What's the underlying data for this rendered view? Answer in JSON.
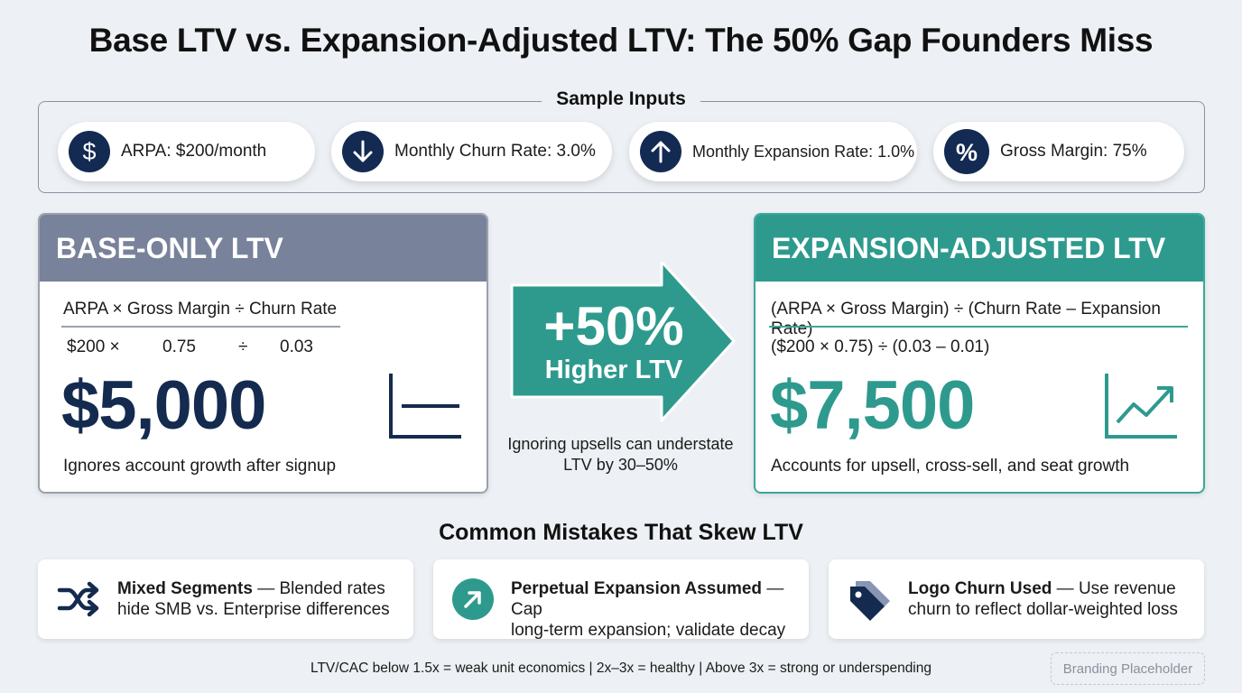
{
  "title": "Base LTV vs. Expansion-Adjusted LTV: The 50% Gap Founders Miss",
  "sample_inputs": {
    "label": "Sample Inputs",
    "items": [
      {
        "icon": "dollar-icon",
        "text": "ARPA: $200/month"
      },
      {
        "icon": "arrow-down-icon",
        "text": "Monthly Churn Rate: 3.0%"
      },
      {
        "icon": "arrow-up-icon",
        "text": "Monthly Expansion Rate: 1.0%"
      },
      {
        "icon": "percent-icon",
        "text": "Gross Margin: 75%"
      }
    ]
  },
  "base_card": {
    "heading": "BASE-ONLY LTV",
    "formula": "ARPA × Gross Margin ÷ Churn Rate",
    "subs": [
      "$200 ×",
      "0.75",
      "÷",
      "0.03"
    ],
    "value": "$5,000",
    "note": "Ignores account growth after signup",
    "icon": "flat-line-chart-icon"
  },
  "arrow": {
    "big": "+50%",
    "sub": "Higher LTV",
    "note": "Ignoring upsells can understate LTV by 30–50%"
  },
  "expansion_card": {
    "heading": "EXPANSION-ADJUSTED LTV",
    "formula": "(ARPA × Gross Margin) ÷ (Churn Rate – Expansion Rate)",
    "subs": "($200 × 0.75) ÷ (0.03 – 0.01)",
    "value": "$7,500",
    "note": "Accounts for upsell, cross-sell, and seat growth",
    "icon": "trending-up-chart-icon"
  },
  "mistakes": {
    "title": "Common Mistakes That Skew LTV",
    "items": [
      {
        "icon": "shuffle-icon",
        "bold": "Mixed Segments",
        "rest1": " — Blended rates",
        "rest2": "hide SMB vs. Enterprise differences"
      },
      {
        "icon": "arrow-up-right-icon",
        "bold": "Perpetual Expansion Assumed",
        "rest1": " — Cap",
        "rest2": "long-term expansion; validate decay"
      },
      {
        "icon": "tag-icon",
        "bold": "Logo Churn Used",
        "rest1": " — Use revenue",
        "rest2": "churn to reflect dollar-weighted loss"
      }
    ]
  },
  "footer": "LTV/CAC below 1.5x = weak unit economics | 2x–3x = healthy | Above 3x = strong or underspending",
  "branding": "Branding Placeholder",
  "colors": {
    "navy": "#132a52",
    "teal": "#2e9a8e",
    "slate": "#78829a",
    "background": "#edf0f4"
  }
}
